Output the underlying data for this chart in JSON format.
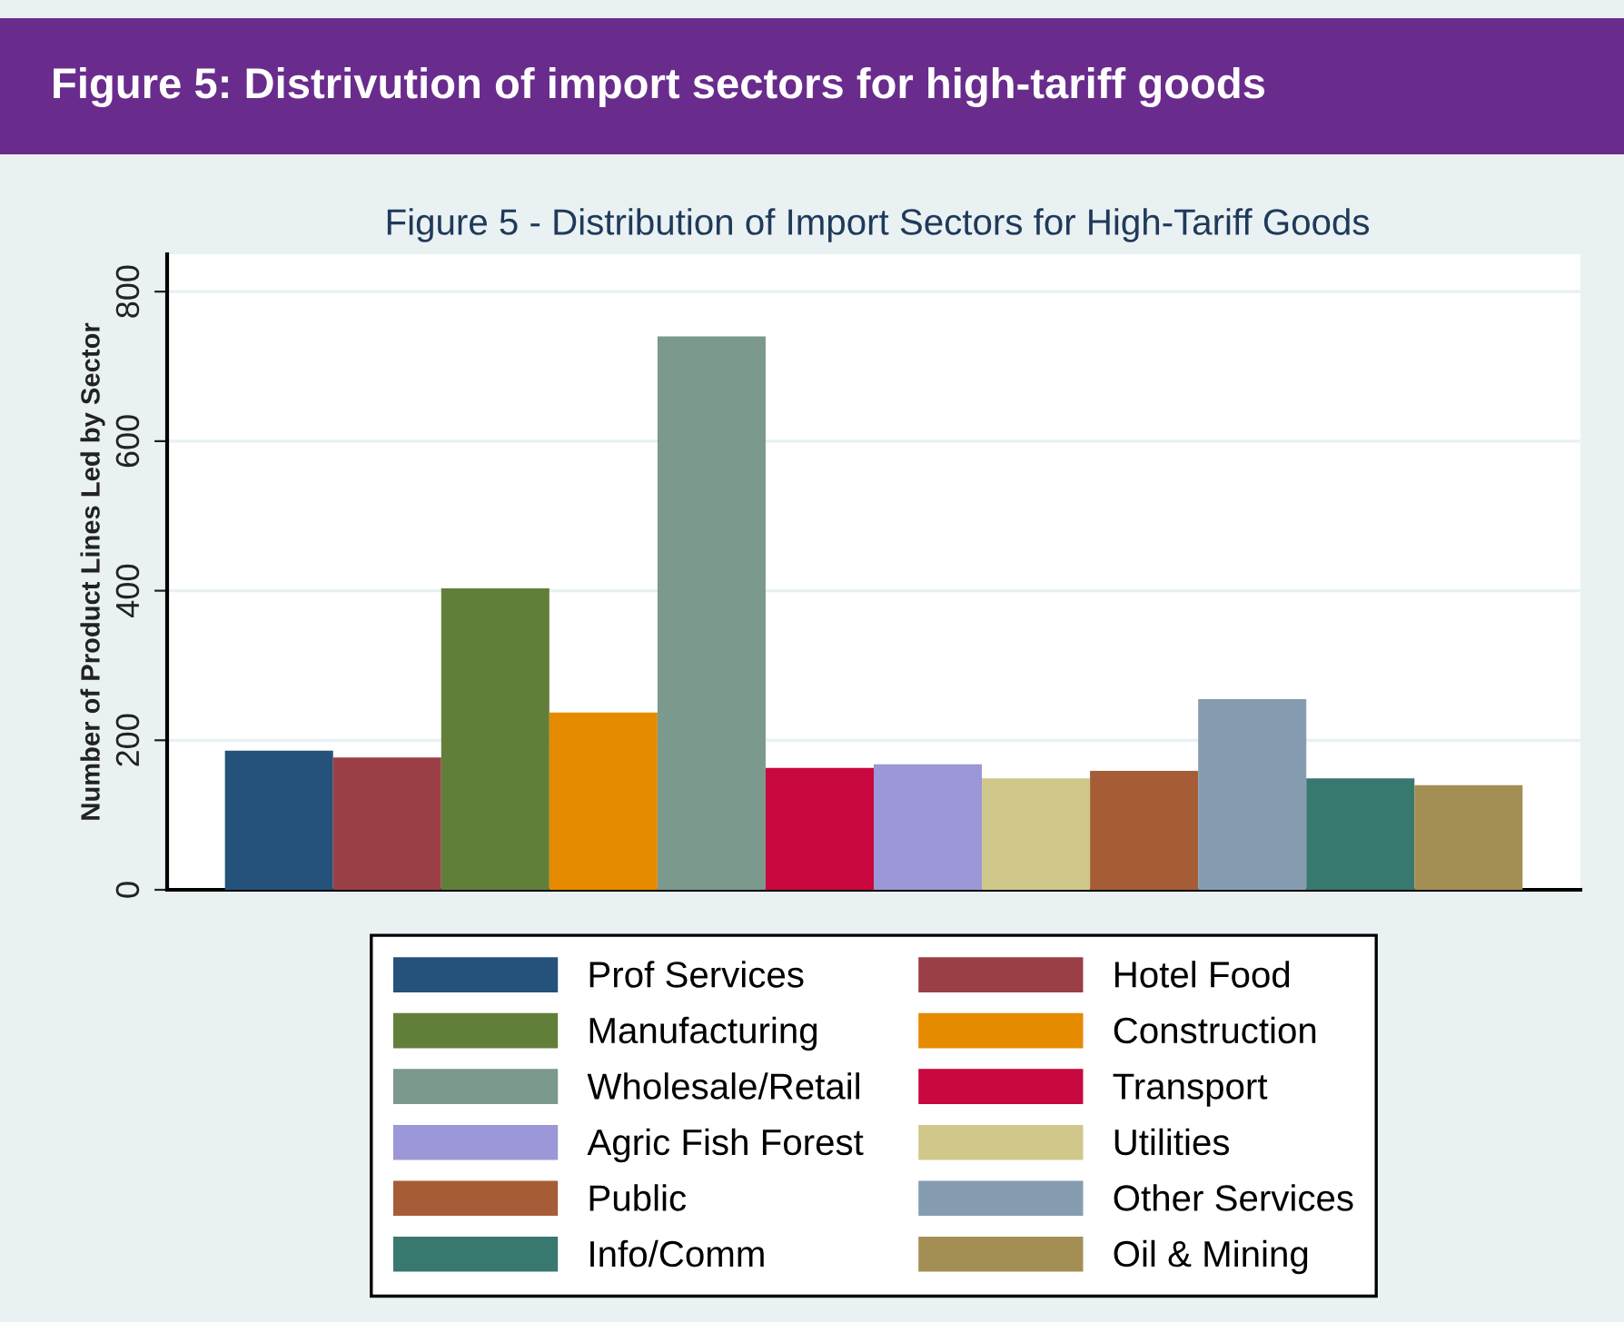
{
  "chart_data": {
    "type": "bar",
    "title": "Figure 5: Distrivution of import sectors for high-tariff goods",
    "subtitle": "Figure 5 - Distribution of Import Sectors for High-Tariff Goods",
    "ylabel": "Number of Product Lines Led by Sector",
    "categories": [
      null
    ],
    "series": [
      {
        "name": "Prof Services",
        "color": "#24527a",
        "values": [
          186
        ]
      },
      {
        "name": "Hotel Food",
        "color": "#9b3f47",
        "values": [
          177
        ]
      },
      {
        "name": "Manufacturing",
        "color": "#627f39",
        "values": [
          403
        ]
      },
      {
        "name": "Construction",
        "color": "#e68a00",
        "values": [
          237
        ]
      },
      {
        "name": "Wholesale/Retail",
        "color": "#7b998c",
        "values": [
          740
        ]
      },
      {
        "name": "Transport",
        "color": "#c8083f",
        "values": [
          163
        ]
      },
      {
        "name": "Agric Fish Forest",
        "color": "#9c97d6",
        "values": [
          168
        ]
      },
      {
        "name": "Utilities",
        "color": "#d0c78a",
        "values": [
          149
        ]
      },
      {
        "name": "Public",
        "color": "#a65d37",
        "values": [
          159
        ]
      },
      {
        "name": "Other Services",
        "color": "#859cb1",
        "values": [
          255
        ]
      },
      {
        "name": "Info/Comm",
        "color": "#38786e",
        "values": [
          149
        ]
      },
      {
        "name": "Oil & Mining",
        "color": "#a38f53",
        "values": [
          140
        ]
      }
    ],
    "ylim": [
      0,
      850
    ],
    "yticks": [
      0,
      200,
      400,
      600,
      800
    ],
    "grid": "y",
    "legend": "bottom"
  }
}
